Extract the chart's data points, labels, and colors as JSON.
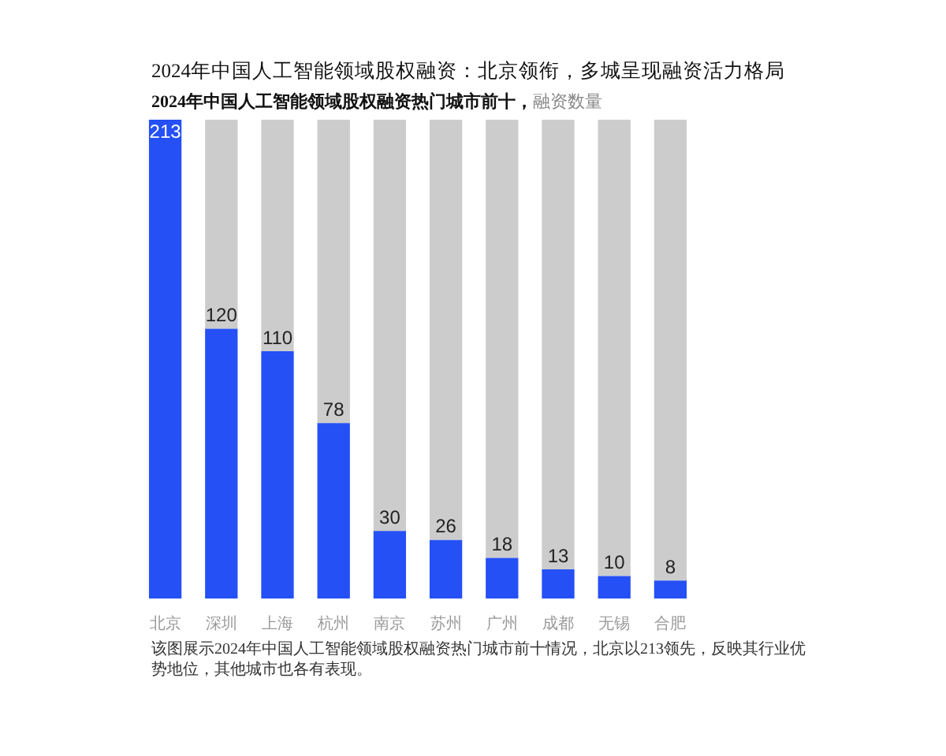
{
  "chart_data": {
    "type": "bar",
    "title": "2024年中国人工智能领域股权融资：北京领衔，多城呈现融资活力格局",
    "subtitle": "2024年中国人工智能领域股权融资热门城市前十，",
    "ylabel": "融资数量",
    "categories": [
      "北京",
      "深圳",
      "上海",
      "杭州",
      "南京",
      "苏州",
      "广州",
      "成都",
      "无锡",
      "合肥"
    ],
    "stacked": true,
    "series": [
      {
        "color": "#2450f5",
        "values": [
          213,
          120,
          110,
          78,
          30,
          26,
          18,
          13,
          10,
          8
        ],
        "value_labels": [
          "213",
          "120",
          "110",
          "78",
          "30",
          "26",
          "18",
          "13",
          "10",
          "8"
        ]
      },
      {
        "color": "#cccccc",
        "values": [
          0,
          93,
          103,
          135,
          183,
          187,
          195,
          200,
          203,
          205
        ]
      }
    ],
    "annotations": [
      "该图展示2024年中国人工智能领域股权融资热门城市前十情况，北京以213领先，反映其行业优势地位，其他城市也各有表现。"
    ]
  }
}
